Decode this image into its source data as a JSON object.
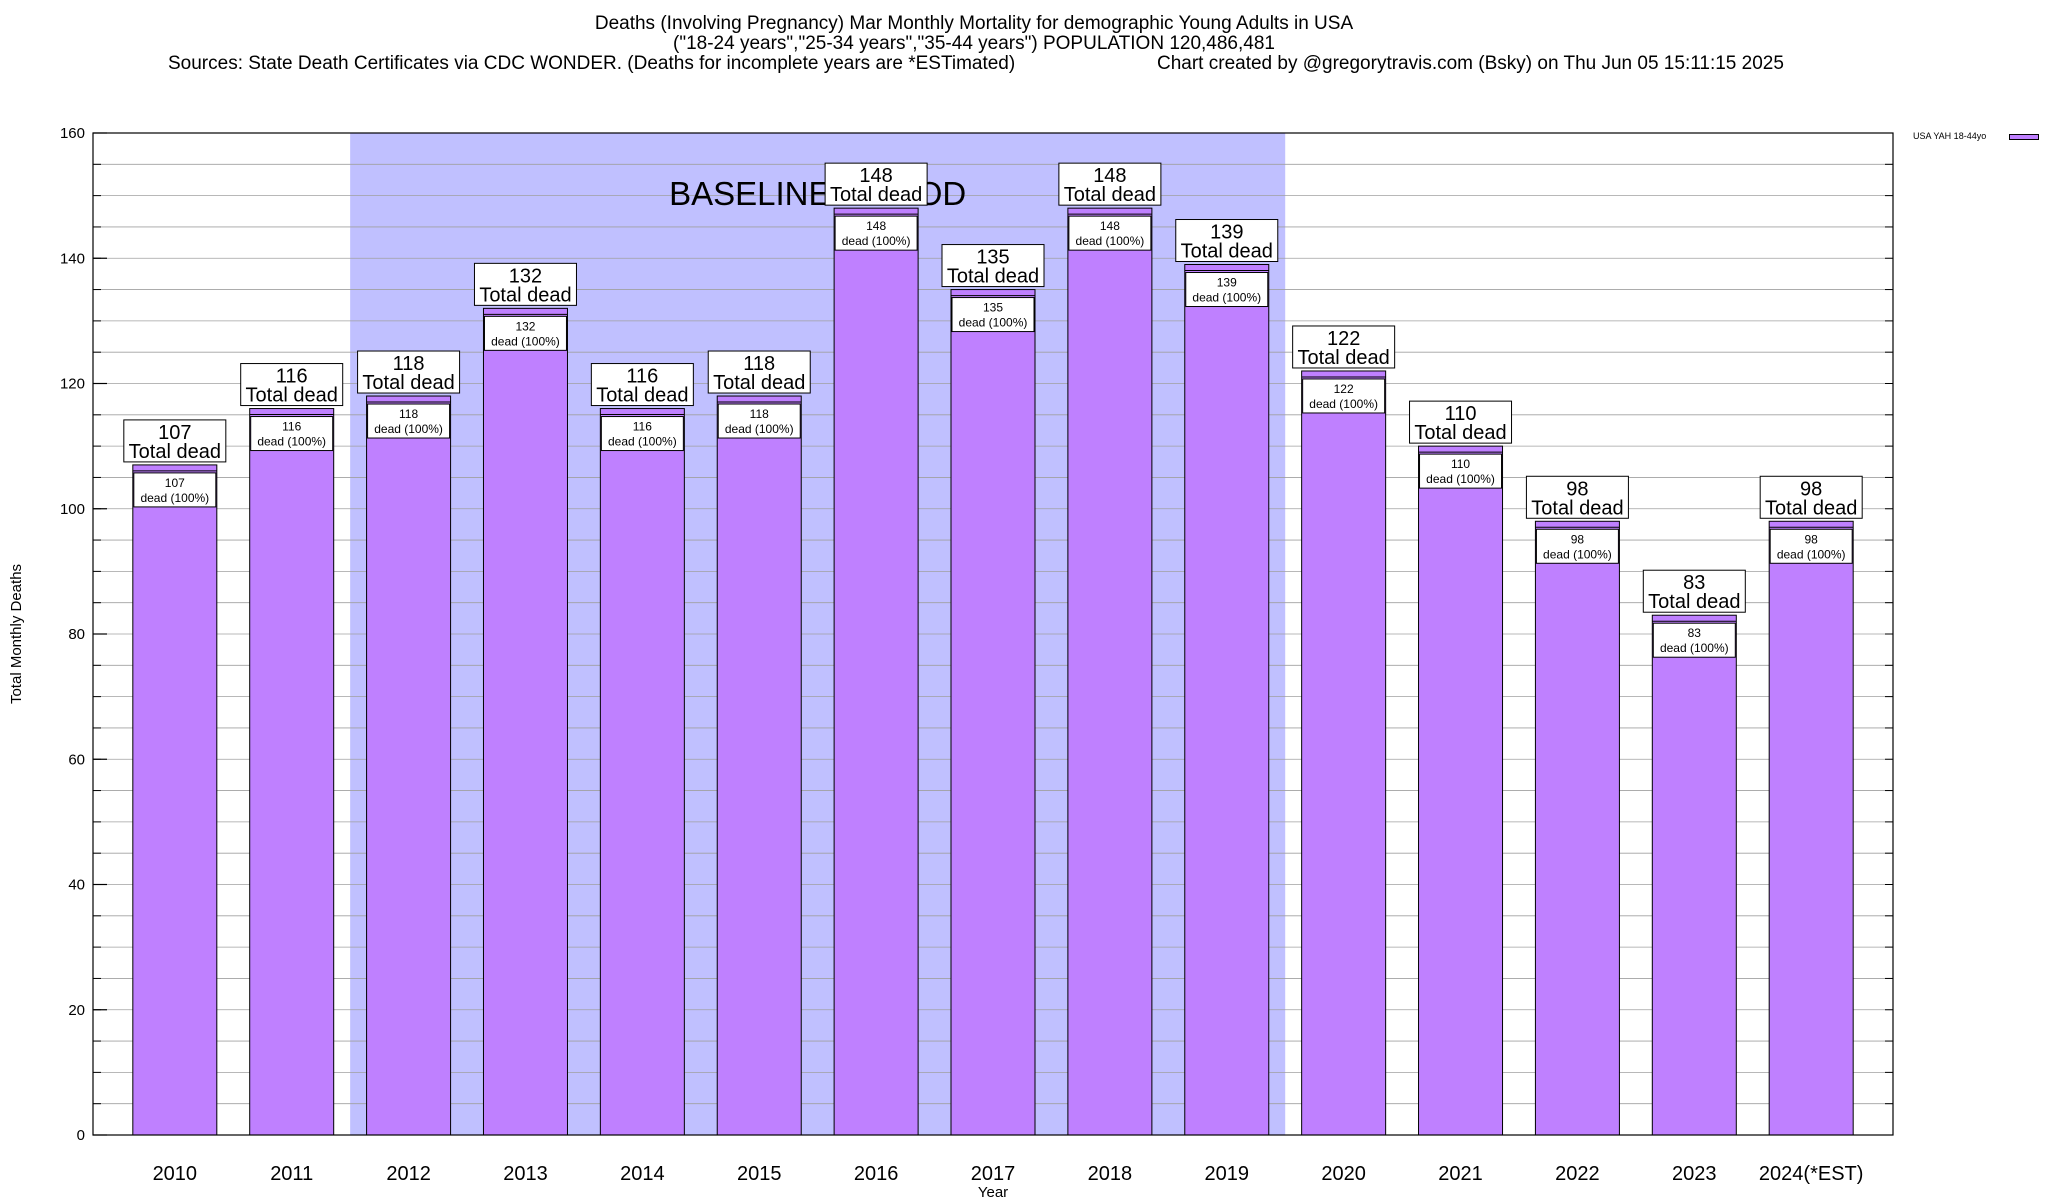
{
  "chart_data": {
    "type": "bar",
    "title": "Deaths (Involving Pregnancy) Mar Monthly Mortality for demographic Young Adults in USA",
    "subtitle": "(\"18-24 years\",\"25-34 years\",\"35-44 years\") POPULATION 120,486,481",
    "source": "Sources: State Death Certificates via CDC WONDER. (Deaths for incomplete years are *ESTimated)",
    "credit": "Chart created by @gregorytravis.com (Bsky) on Thu Jun 05 15:11:15 2025",
    "xlabel": "Year",
    "ylabel": "Total Monthly Deaths",
    "ylim": [
      0,
      160
    ],
    "yticks": [
      0,
      20,
      40,
      60,
      80,
      100,
      120,
      140,
      160
    ],
    "categories": [
      "2010",
      "2011",
      "2012",
      "2013",
      "2014",
      "2015",
      "2016",
      "2017",
      "2018",
      "2019",
      "2020",
      "2021",
      "2022",
      "2023",
      "2024(*EST)"
    ],
    "series": [
      {
        "name": "USA YAH 18-44yo",
        "color": "#bf80ff",
        "values": [
          107,
          116,
          118,
          132,
          116,
          118,
          148,
          135,
          148,
          139,
          122,
          110,
          98,
          83,
          98
        ]
      }
    ],
    "total_label": "Total dead",
    "inner_label": "dead (100%)",
    "baseline": {
      "label": "BASELINE PERIOD",
      "start": "2012",
      "end": "2019",
      "color": "#c0c0ff"
    },
    "grid": "horizontal",
    "legend_position": "top-right"
  }
}
